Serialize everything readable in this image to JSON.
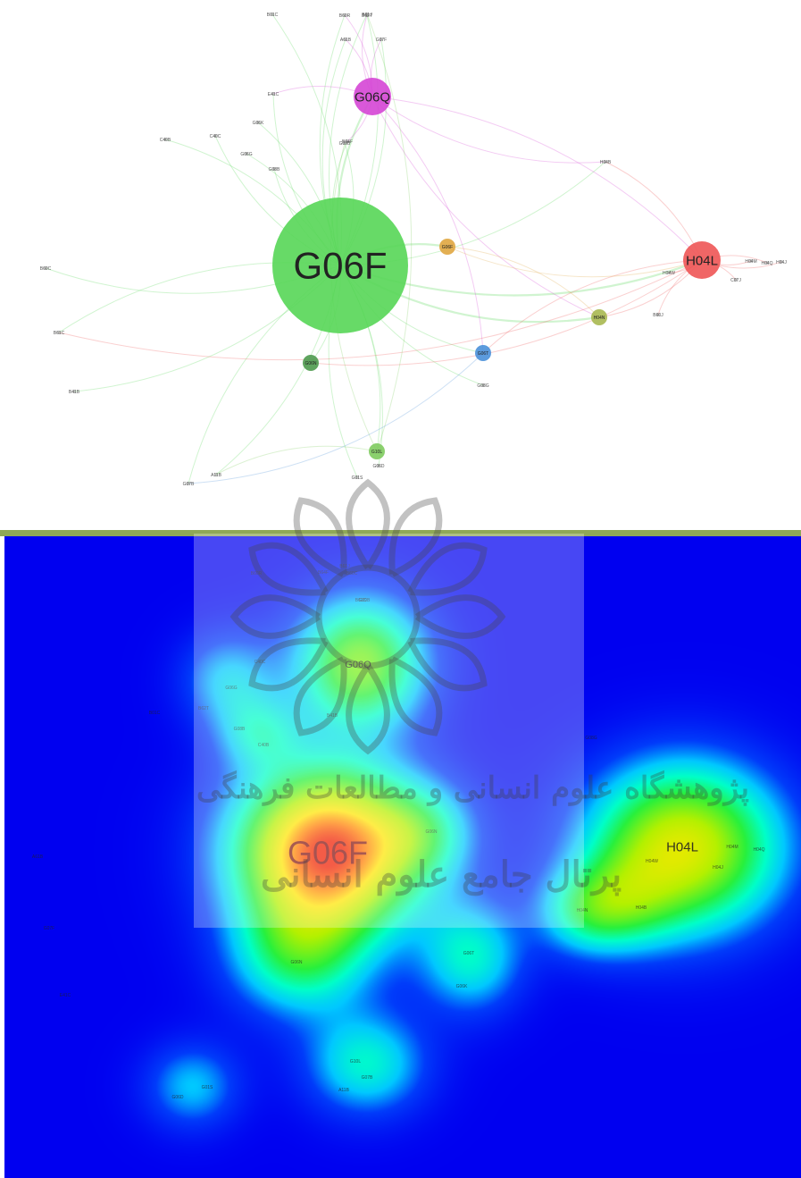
{
  "network": {
    "nodes": [
      {
        "label": "G06F",
        "size": "xl",
        "color": "#56d656",
        "text_size": "xl"
      },
      {
        "label": "G06Q",
        "size": "m",
        "color": "#d546d5",
        "text_size": "m"
      },
      {
        "label": "H04L",
        "size": "m",
        "color": "#ee5555",
        "text_size": "m"
      },
      {
        "label": "G06F",
        "size": "s",
        "color": "#e0a640",
        "text_size": "xs"
      },
      {
        "label": "H04N",
        "size": "s",
        "color": "#a8b850",
        "text_size": "xs"
      },
      {
        "label": "G06N",
        "size": "s",
        "color": "#4e9a4e",
        "text_size": "xs"
      },
      {
        "label": "G06T",
        "size": "s",
        "color": "#4a90d9",
        "text_size": "xs"
      },
      {
        "label": "G10L",
        "size": "s",
        "color": "#7ecb5e",
        "text_size": "xs"
      },
      {
        "label": "B01C",
        "size": "dot",
        "color": "#999999",
        "text_size": "xs"
      },
      {
        "label": "B60R",
        "size": "dot",
        "color": "#999999",
        "text_size": "xs"
      },
      {
        "label": "B62T",
        "size": "dot",
        "color": "#999999",
        "text_size": "xs"
      },
      {
        "label": "A61B",
        "size": "dot",
        "color": "#999999",
        "text_size": "xs"
      },
      {
        "label": "G07F",
        "size": "dot",
        "color": "#999999",
        "text_size": "xs"
      },
      {
        "label": "E41C",
        "size": "dot",
        "color": "#999999",
        "text_size": "xs"
      },
      {
        "label": "G06K",
        "size": "dot",
        "color": "#999999",
        "text_size": "xs"
      },
      {
        "label": "C40C",
        "size": "dot",
        "color": "#999999",
        "text_size": "xs"
      },
      {
        "label": "G06G",
        "size": "dot",
        "color": "#999999",
        "text_size": "xs"
      },
      {
        "label": "G08B",
        "size": "dot",
        "color": "#999999",
        "text_size": "xs"
      },
      {
        "label": "C40B",
        "size": "dot",
        "color": "#999999",
        "text_size": "xs"
      },
      {
        "label": "B64F",
        "size": "dot",
        "color": "#999999",
        "text_size": "xs"
      },
      {
        "label": "H04B",
        "size": "dot",
        "color": "#999999",
        "text_size": "xs"
      },
      {
        "label": "B60C",
        "size": "dot",
        "color": "#999999",
        "text_size": "xs"
      },
      {
        "label": "B61C",
        "size": "dot",
        "color": "#999999",
        "text_size": "xs"
      },
      {
        "label": "B41B",
        "size": "dot",
        "color": "#999999",
        "text_size": "xs"
      },
      {
        "label": "H04W",
        "size": "dot",
        "color": "#999999",
        "text_size": "xs"
      },
      {
        "label": "H04M",
        "size": "dot",
        "color": "#999999",
        "text_size": "xs"
      },
      {
        "label": "H04Q",
        "size": "dot",
        "color": "#999999",
        "text_size": "xs"
      },
      {
        "label": "H04J",
        "size": "dot",
        "color": "#999999",
        "text_size": "xs"
      },
      {
        "label": "C07J",
        "size": "dot",
        "color": "#999999",
        "text_size": "xs"
      },
      {
        "label": "B60J",
        "size": "dot",
        "color": "#999999",
        "text_size": "xs"
      },
      {
        "label": "G08G",
        "size": "dot",
        "color": "#999999",
        "text_size": "xs"
      },
      {
        "label": "G06D",
        "size": "dot",
        "color": "#999999",
        "text_size": "xs"
      },
      {
        "label": "G01S",
        "size": "dot",
        "color": "#999999",
        "text_size": "xs"
      },
      {
        "label": "A11B",
        "size": "dot",
        "color": "#999999",
        "text_size": "xs"
      },
      {
        "label": "G07B",
        "size": "dot",
        "color": "#999999",
        "text_size": "xs"
      },
      {
        "label": "B61J",
        "size": "dot",
        "color": "#999999",
        "text_size": "xs"
      },
      {
        "label": "G09B",
        "size": "dot",
        "color": "#999999",
        "text_size": "xs"
      }
    ],
    "edges": [
      [
        0,
        1
      ],
      [
        0,
        2
      ],
      [
        0,
        3
      ],
      [
        0,
        4
      ],
      [
        0,
        5
      ],
      [
        0,
        6
      ],
      [
        0,
        7
      ],
      [
        0,
        8
      ],
      [
        0,
        9
      ],
      [
        0,
        10
      ],
      [
        0,
        11
      ],
      [
        0,
        12
      ],
      [
        0,
        13
      ],
      [
        0,
        14
      ],
      [
        0,
        15
      ],
      [
        0,
        16
      ],
      [
        0,
        17
      ],
      [
        0,
        18
      ],
      [
        0,
        19
      ],
      [
        0,
        20
      ],
      [
        0,
        21
      ],
      [
        0,
        22
      ],
      [
        0,
        23
      ],
      [
        0,
        30
      ],
      [
        0,
        31
      ],
      [
        0,
        32
      ],
      [
        0,
        33
      ],
      [
        0,
        34
      ],
      [
        0,
        35
      ],
      [
        0,
        36
      ],
      [
        1,
        2
      ],
      [
        1,
        9
      ],
      [
        1,
        10
      ],
      [
        1,
        11
      ],
      [
        1,
        12
      ],
      [
        1,
        13
      ],
      [
        1,
        19
      ],
      [
        1,
        20
      ],
      [
        1,
        6
      ],
      [
        1,
        4
      ],
      [
        2,
        24
      ],
      [
        2,
        25
      ],
      [
        2,
        26
      ],
      [
        2,
        27
      ],
      [
        2,
        28
      ],
      [
        2,
        29
      ],
      [
        2,
        4
      ],
      [
        2,
        20
      ],
      [
        2,
        22
      ],
      [
        2,
        6
      ],
      [
        2,
        5
      ],
      [
        7,
        35
      ],
      [
        7,
        36
      ],
      [
        7,
        33
      ],
      [
        6,
        34
      ],
      [
        3,
        2
      ],
      [
        3,
        4
      ]
    ]
  },
  "heatmap": {
    "nodes": [
      {
        "label": "G06F",
        "text_size": "xl"
      },
      {
        "label": "G06Q",
        "text_size": "s"
      },
      {
        "label": "H04L",
        "text_size": "m"
      },
      {
        "label": "G06N",
        "text_size": "xs"
      },
      {
        "label": "G06N",
        "text_size": "xs"
      },
      {
        "label": "G06T",
        "text_size": "xs"
      },
      {
        "label": "G06K",
        "text_size": "xs"
      },
      {
        "label": "G10L",
        "text_size": "xs"
      },
      {
        "label": "H04N",
        "text_size": "xs"
      },
      {
        "label": "H04B",
        "text_size": "xs"
      },
      {
        "label": "H04W",
        "text_size": "xs"
      },
      {
        "label": "H04M",
        "text_size": "xs"
      },
      {
        "label": "H04Q",
        "text_size": "xs"
      },
      {
        "label": "H04J",
        "text_size": "xs"
      },
      {
        "label": "B01C",
        "text_size": "xs"
      },
      {
        "label": "B60R",
        "text_size": "xs"
      },
      {
        "label": "B62T",
        "text_size": "xs"
      },
      {
        "label": "A61B",
        "text_size": "xs"
      },
      {
        "label": "G07F",
        "text_size": "xs"
      },
      {
        "label": "E41C",
        "text_size": "xs"
      },
      {
        "label": "C40C",
        "text_size": "xs"
      },
      {
        "label": "G06G",
        "text_size": "xs"
      },
      {
        "label": "G08B",
        "text_size": "xs"
      },
      {
        "label": "C40B",
        "text_size": "xs"
      },
      {
        "label": "B64F",
        "text_size": "xs"
      },
      {
        "label": "B60C",
        "text_size": "xs"
      },
      {
        "label": "B61C",
        "text_size": "xs"
      },
      {
        "label": "B41B",
        "text_size": "xs"
      },
      {
        "label": "G08G",
        "text_size": "xs"
      },
      {
        "label": "G06D",
        "text_size": "xs"
      },
      {
        "label": "G01S",
        "text_size": "xs"
      },
      {
        "label": "A11B",
        "text_size": "xs"
      },
      {
        "label": "G07B",
        "text_size": "xs"
      },
      {
        "label": "B61J",
        "text_size": "xs"
      },
      {
        "label": "G09B",
        "text_size": "xs"
      }
    ],
    "hotspots": [
      {
        "label": "G06F",
        "intensity": 1.0
      },
      {
        "label": "G06Q",
        "intensity": 0.55
      },
      {
        "label": "H04L",
        "intensity": 0.7
      },
      {
        "label": "G06N",
        "intensity": 0.35
      },
      {
        "label": "G10L",
        "intensity": 0.3
      },
      {
        "label": "G06T",
        "intensity": 0.3
      },
      {
        "label": "H04N",
        "intensity": 0.25
      }
    ]
  },
  "watermark": {
    "line1": "پژوهشگاه علوم انسانی و مطالعات فرهنگی",
    "line2": "پرتال جامع علوم انسانی"
  }
}
